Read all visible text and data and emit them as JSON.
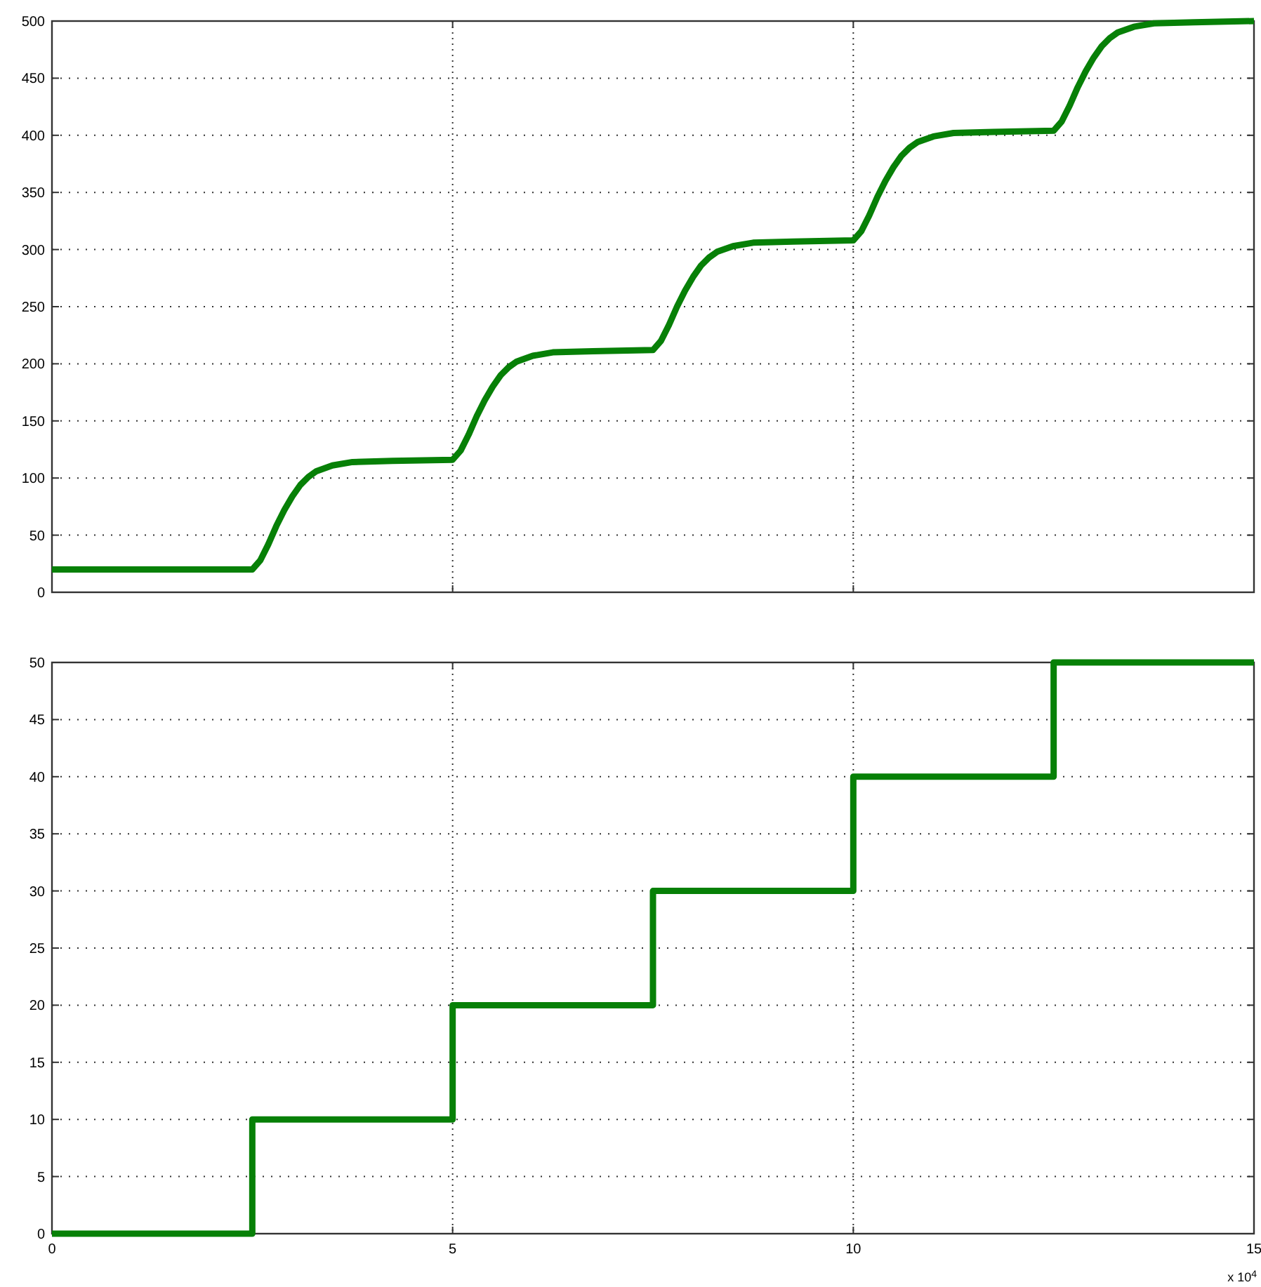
{
  "chart_data": [
    {
      "type": "line",
      "xlim": [
        0,
        15
      ],
      "xticks": [
        0,
        5,
        10,
        15
      ],
      "ylim": [
        0,
        500
      ],
      "yticks": [
        0,
        50,
        100,
        150,
        200,
        250,
        300,
        350,
        400,
        450,
        500
      ],
      "grid": true,
      "tick_labels": "y",
      "line_style": "solid",
      "marker": "none",
      "series": [
        {
          "color": "#078007",
          "x": [
            0,
            2.5,
            2.6,
            2.7,
            2.8,
            2.9,
            3,
            3.1,
            3.2,
            3.3,
            3.5,
            3.75,
            4.25,
            5,
            5.1,
            5.2,
            5.3,
            5.4,
            5.5,
            5.6,
            5.7,
            5.8,
            6,
            6.25,
            6.75,
            7.5,
            7.6,
            7.7,
            7.8,
            7.9,
            8,
            8.1,
            8.2,
            8.3,
            8.5,
            8.75,
            9.25,
            10,
            10.1,
            10.2,
            10.3,
            10.4,
            10.5,
            10.6,
            10.7,
            10.8,
            11,
            11.25,
            11.75,
            12.5,
            12.6,
            12.7,
            12.8,
            12.9,
            13,
            13.1,
            13.2,
            13.3,
            13.5,
            13.75,
            14.25,
            15
          ],
          "values": [
            20,
            20,
            28,
            42,
            58,
            72,
            84,
            94,
            101,
            106,
            111,
            114,
            115,
            116,
            124,
            138,
            154,
            168,
            180,
            190,
            197,
            202,
            207,
            210,
            211,
            212,
            220,
            234,
            250,
            264,
            276,
            286,
            293,
            298,
            303,
            306,
            307,
            308,
            316,
            330,
            346,
            360,
            372,
            382,
            389,
            394,
            399,
            402,
            403,
            404,
            412,
            426,
            442,
            456,
            468,
            478,
            485,
            490,
            495,
            498,
            499,
            500
          ]
        }
      ]
    },
    {
      "type": "step",
      "xlim": [
        0,
        15
      ],
      "xticks": [
        0,
        5,
        10,
        15
      ],
      "ylim": [
        0,
        50
      ],
      "yticks": [
        0,
        5,
        10,
        15,
        20,
        25,
        30,
        35,
        40,
        45,
        50
      ],
      "grid": true,
      "line_style": "solid",
      "marker": "none",
      "annotations": [
        "x 10$^{4}$"
      ],
      "series": [
        {
          "color": "#078007",
          "x": [
            0,
            2.5,
            5,
            7.5,
            10,
            12.5,
            15
          ],
          "values": [
            0,
            10,
            20,
            30,
            40,
            50,
            50
          ]
        }
      ]
    }
  ]
}
